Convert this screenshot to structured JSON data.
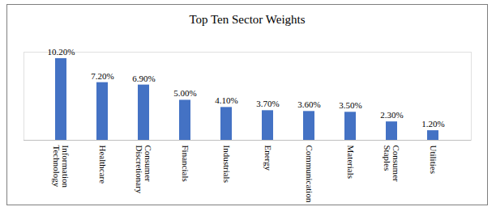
{
  "chart_data": {
    "type": "bar",
    "title": "Top Ten Sector Weights",
    "categories": [
      "Information Technology",
      "Healthcare",
      "Consumer Discretionary",
      "Financials",
      "Industrials",
      "Energy",
      "Communication",
      "Materials",
      "Consumer Staples",
      "Utilities"
    ],
    "values": [
      10.2,
      7.2,
      6.9,
      5.0,
      4.1,
      3.7,
      3.6,
      3.5,
      2.3,
      1.2
    ],
    "value_labels": [
      "10.20%",
      "7.20%",
      "6.90%",
      "5.00%",
      "4.10%",
      "3.70%",
      "3.60%",
      "3.50%",
      "2.30%",
      "1.20%"
    ],
    "color": "#4472c4",
    "ylim": [
      0,
      11
    ],
    "grid": false,
    "data_labels": true,
    "tick_labels": "x"
  }
}
